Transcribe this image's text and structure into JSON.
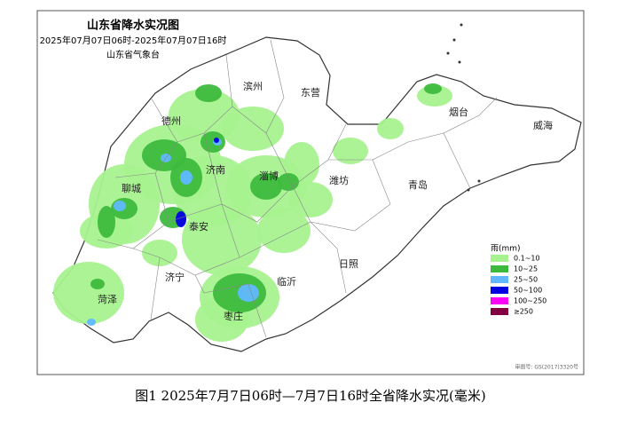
{
  "header": {
    "title": "山东省降水实况图",
    "time_range": "2025年07月07日06时-2025年07月07日16时",
    "issuer": "山东省气象台"
  },
  "cities": [
    "滨州",
    "东营",
    "烟台",
    "威海",
    "德州",
    "济南",
    "淄博",
    "潍坊",
    "青岛",
    "聊城",
    "泰安",
    "日照",
    "济宁",
    "临沂",
    "菏泽",
    "枣庄"
  ],
  "legend": {
    "title": "雨(mm)",
    "items": [
      {
        "label": "0.1~10",
        "color": "#a6f28f"
      },
      {
        "label": "10~25",
        "color": "#3dba3d"
      },
      {
        "label": "25~50",
        "color": "#61b8ff"
      },
      {
        "label": "50~100",
        "color": "#0000e1"
      },
      {
        "label": "100~250",
        "color": "#fa00fa"
      },
      {
        "label": "≥250",
        "color": "#800040"
      }
    ]
  },
  "approval": "审图号: GS(2017)3320号",
  "caption": "图1 2025年7月7日06时—7月7日16时全省降水实况(毫米)"
}
